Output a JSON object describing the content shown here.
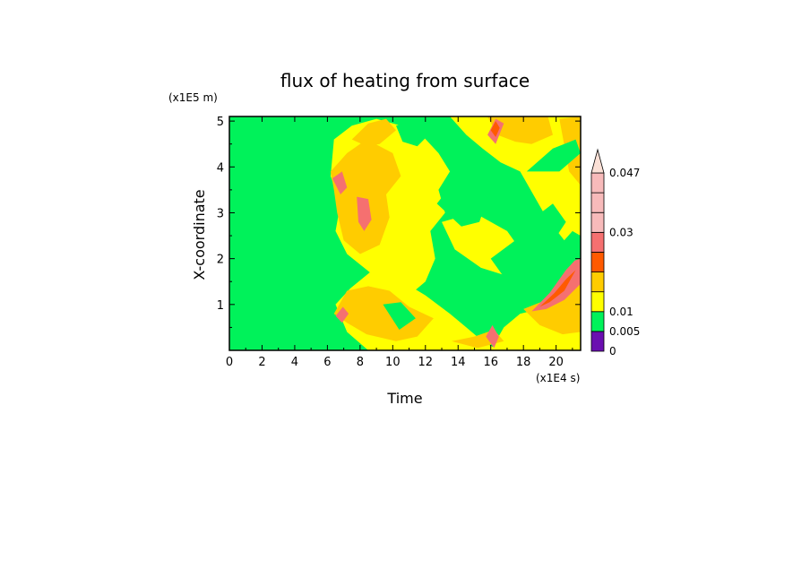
{
  "chart_data": {
    "type": "heatmap",
    "title": "flux of heating from surface",
    "xlabel": "Time",
    "ylabel": "X-coordinate",
    "x_unit": "(x1E4 s)",
    "y_unit": "(x1E5 m)",
    "xlim": [
      0,
      21.5
    ],
    "ylim": [
      0,
      5.1
    ],
    "x_ticks": [
      0,
      2,
      4,
      6,
      8,
      10,
      12,
      14,
      16,
      18,
      20
    ],
    "y_ticks": [
      1,
      2,
      3,
      4,
      5
    ],
    "colorbar": {
      "levels": [
        0,
        0.005,
        0.01,
        0.015,
        0.02,
        0.025,
        0.03,
        0.035,
        0.04,
        0.047
      ],
      "labels": [
        "0",
        "0.005",
        "0.01",
        "0.03",
        "0.047"
      ],
      "label_levels": [
        0,
        0.005,
        0.01,
        0.03,
        0.047
      ],
      "colors": [
        "#6a0fb0",
        "#00f25a",
        "#ffff00",
        "#ffcc00",
        "#ff5a00",
        "#f57070",
        "#f7baba",
        "#fbe0d6"
      ],
      "extend": "max"
    },
    "background_color": "#00f25a",
    "regions": [
      {
        "name": "warm-plume-upper",
        "level": "#ffff00",
        "points": [
          [
            6.4,
            4.6
          ],
          [
            7.5,
            4.9
          ],
          [
            9,
            5.05
          ],
          [
            11.5,
            4.8
          ],
          [
            12.8,
            4.3
          ],
          [
            13.5,
            3.9
          ],
          [
            12.8,
            3.5
          ],
          [
            13.2,
            3.0
          ],
          [
            12.3,
            2.6
          ],
          [
            12.6,
            2.0
          ],
          [
            12.0,
            1.5
          ],
          [
            11.0,
            1.2
          ],
          [
            9.8,
            1.3
          ],
          [
            8.6,
            1.7
          ],
          [
            7.2,
            2.1
          ],
          [
            6.5,
            2.6
          ],
          [
            6.8,
            3.2
          ],
          [
            6.2,
            3.8
          ]
        ]
      },
      {
        "name": "warm-plume-lower",
        "level": "#ffff00",
        "points": [
          [
            6.5,
            1.0
          ],
          [
            7.4,
            1.35
          ],
          [
            8.6,
            1.7
          ],
          [
            10.6,
            1.5
          ],
          [
            12.0,
            1.2
          ],
          [
            13.5,
            0.8
          ],
          [
            14.5,
            0.5
          ],
          [
            15.5,
            0.2
          ],
          [
            16.5,
            0.0
          ],
          [
            8.5,
            0.0
          ],
          [
            7.2,
            0.4
          ]
        ]
      },
      {
        "name": "warm-right-top",
        "level": "#ffff00",
        "points": [
          [
            13.5,
            5.1
          ],
          [
            21.5,
            5.1
          ],
          [
            21.5,
            2.2
          ],
          [
            20.5,
            2.4
          ],
          [
            19.4,
            2.9
          ],
          [
            18.6,
            3.4
          ],
          [
            17.8,
            3.9
          ],
          [
            16.6,
            4.1
          ],
          [
            15.5,
            4.4
          ],
          [
            14.5,
            4.7
          ]
        ]
      },
      {
        "name": "warm-right-bottom",
        "level": "#ffff00",
        "points": [
          [
            16.0,
            0.0
          ],
          [
            21.5,
            0.0
          ],
          [
            21.5,
            1.6
          ],
          [
            20.3,
            1.2
          ],
          [
            19.0,
            0.9
          ],
          [
            17.8,
            0.8
          ],
          [
            16.8,
            0.5
          ]
        ]
      },
      {
        "name": "mid-yellow-band",
        "level": "#ffff00",
        "points": [
          [
            13.0,
            2.8
          ],
          [
            15.0,
            3.0
          ],
          [
            17.0,
            2.6
          ],
          [
            18.0,
            2.1
          ],
          [
            17.2,
            1.6
          ],
          [
            15.4,
            1.8
          ],
          [
            13.8,
            2.2
          ]
        ]
      },
      {
        "name": "orange-upper-left",
        "level": "#ffcc00",
        "points": [
          [
            6.2,
            3.9
          ],
          [
            7.2,
            4.3
          ],
          [
            8.4,
            4.6
          ],
          [
            10.0,
            4.3
          ],
          [
            10.5,
            3.8
          ],
          [
            9.6,
            3.4
          ],
          [
            9.8,
            2.9
          ],
          [
            9.2,
            2.3
          ],
          [
            8.0,
            2.1
          ],
          [
            7.0,
            2.4
          ],
          [
            6.6,
            3.0
          ],
          [
            6.4,
            3.5
          ]
        ]
      },
      {
        "name": "orange-top-strip",
        "level": "#ffcc00",
        "points": [
          [
            7.5,
            4.6
          ],
          [
            8.5,
            4.95
          ],
          [
            9.6,
            5.05
          ],
          [
            10.2,
            4.8
          ],
          [
            9.2,
            4.5
          ],
          [
            8.4,
            4.45
          ]
        ]
      },
      {
        "name": "orange-lower-left",
        "level": "#ffcc00",
        "points": [
          [
            6.4,
            0.8
          ],
          [
            7.2,
            1.3
          ],
          [
            8.5,
            1.4
          ],
          [
            9.8,
            1.3
          ],
          [
            11.0,
            0.95
          ],
          [
            12.5,
            0.7
          ],
          [
            11.5,
            0.3
          ],
          [
            10.2,
            0.2
          ],
          [
            8.4,
            0.35
          ],
          [
            7.2,
            0.6
          ]
        ]
      },
      {
        "name": "orange-right-top",
        "level": "#ffcc00",
        "points": [
          [
            15.8,
            5.1
          ],
          [
            19.5,
            5.1
          ],
          [
            19.8,
            4.7
          ],
          [
            18.5,
            4.5
          ],
          [
            17.5,
            4.55
          ],
          [
            16.4,
            4.7
          ]
        ]
      },
      {
        "name": "orange-right-side",
        "level": "#ffcc00",
        "points": [
          [
            20.2,
            5.05
          ],
          [
            21.5,
            5.1
          ],
          [
            21.5,
            3.6
          ],
          [
            20.8,
            3.9
          ]
        ]
      },
      {
        "name": "orange-bottom-right",
        "level": "#ffcc00",
        "points": [
          [
            18.0,
            0.9
          ],
          [
            19.4,
            1.1
          ],
          [
            20.6,
            1.5
          ],
          [
            21.5,
            1.9
          ],
          [
            21.5,
            0.4
          ],
          [
            20.4,
            0.35
          ],
          [
            19.0,
            0.55
          ]
        ]
      },
      {
        "name": "orange-bottom-middle",
        "level": "#ffcc00",
        "points": [
          [
            13.6,
            0.2
          ],
          [
            15.0,
            0.3
          ],
          [
            16.2,
            0.45
          ],
          [
            16.8,
            0.2
          ],
          [
            15.2,
            0.05
          ]
        ]
      },
      {
        "name": "red-upper-left",
        "level": "#f57070",
        "points": [
          [
            7.8,
            3.35
          ],
          [
            8.5,
            3.3
          ],
          [
            8.7,
            2.85
          ],
          [
            8.25,
            2.6
          ],
          [
            7.9,
            2.8
          ]
        ]
      },
      {
        "name": "red-upper-left-tip",
        "level": "#f57070",
        "points": [
          [
            6.3,
            3.75
          ],
          [
            6.9,
            3.9
          ],
          [
            7.2,
            3.55
          ],
          [
            6.8,
            3.4
          ]
        ]
      },
      {
        "name": "red-top-spike",
        "level": "#f57070",
        "points": [
          [
            15.8,
            4.7
          ],
          [
            16.3,
            5.05
          ],
          [
            16.8,
            4.95
          ],
          [
            16.3,
            4.5
          ]
        ]
      },
      {
        "name": "red-lower-left",
        "level": "#f57070",
        "points": [
          [
            6.5,
            0.75
          ],
          [
            6.95,
            0.95
          ],
          [
            7.3,
            0.8
          ],
          [
            6.9,
            0.6
          ]
        ]
      },
      {
        "name": "red-right",
        "level": "#f57070",
        "points": [
          [
            18.5,
            0.85
          ],
          [
            19.6,
            1.25
          ],
          [
            20.6,
            1.75
          ],
          [
            21.5,
            2.1
          ],
          [
            21.5,
            1.45
          ],
          [
            20.5,
            1.1
          ],
          [
            19.4,
            0.9
          ]
        ]
      },
      {
        "name": "red-bottom-spike",
        "level": "#f57070",
        "points": [
          [
            15.7,
            0.3
          ],
          [
            16.1,
            0.55
          ],
          [
            16.5,
            0.3
          ],
          [
            16.2,
            0.05
          ]
        ]
      },
      {
        "name": "redorange-right",
        "level": "#ff5a00",
        "points": [
          [
            19.0,
            0.95
          ],
          [
            19.9,
            1.25
          ],
          [
            20.6,
            1.55
          ],
          [
            21.2,
            1.75
          ],
          [
            20.5,
            1.3
          ],
          [
            19.6,
            1.05
          ]
        ]
      },
      {
        "name": "redorange-top-spike",
        "level": "#ff5a00",
        "points": [
          [
            16.0,
            4.8
          ],
          [
            16.3,
            5.0
          ],
          [
            16.55,
            4.85
          ],
          [
            16.3,
            4.65
          ]
        ]
      },
      {
        "name": "green-holes-1",
        "level": "#00f25a",
        "points": [
          [
            12.7,
            3.2
          ],
          [
            13.8,
            3.7
          ],
          [
            15.1,
            3.9
          ],
          [
            16.0,
            3.5
          ],
          [
            15.3,
            2.8
          ],
          [
            14.2,
            2.7
          ]
        ]
      },
      {
        "name": "green-holes-2",
        "level": "#00f25a",
        "points": [
          [
            16.0,
            2.0
          ],
          [
            17.5,
            2.4
          ],
          [
            18.7,
            2.9
          ],
          [
            19.8,
            3.2
          ],
          [
            20.6,
            2.8
          ],
          [
            19.5,
            2.2
          ],
          [
            18.4,
            1.7
          ],
          [
            17.0,
            1.5
          ]
        ]
      },
      {
        "name": "green-holes-3",
        "level": "#00f25a",
        "points": [
          [
            13.5,
            1.3
          ],
          [
            14.8,
            1.6
          ],
          [
            16.0,
            1.2
          ],
          [
            17.0,
            0.9
          ],
          [
            16.3,
            0.6
          ],
          [
            14.8,
            0.8
          ]
        ]
      },
      {
        "name": "green-holes-4",
        "level": "#00f25a",
        "points": [
          [
            9.4,
            1.0
          ],
          [
            10.5,
            1.05
          ],
          [
            11.4,
            0.7
          ],
          [
            10.4,
            0.45
          ]
        ]
      },
      {
        "name": "green-holes-5",
        "level": "#00f25a",
        "points": [
          [
            10.2,
            4.9
          ],
          [
            11.3,
            5.0
          ],
          [
            12.2,
            4.7
          ],
          [
            11.5,
            4.45
          ],
          [
            10.6,
            4.55
          ]
        ]
      },
      {
        "name": "green-holes-6",
        "level": "#00f25a",
        "points": [
          [
            18.2,
            3.9
          ],
          [
            19.8,
            4.4
          ],
          [
            21.2,
            4.6
          ],
          [
            21.5,
            4.3
          ],
          [
            20.2,
            3.9
          ]
        ]
      },
      {
        "name": "green-holes-7",
        "level": "#00f25a",
        "points": [
          [
            20.0,
            2.2
          ],
          [
            21.0,
            2.6
          ],
          [
            21.5,
            2.5
          ],
          [
            21.5,
            2.0
          ],
          [
            20.6,
            1.9
          ]
        ]
      }
    ]
  }
}
